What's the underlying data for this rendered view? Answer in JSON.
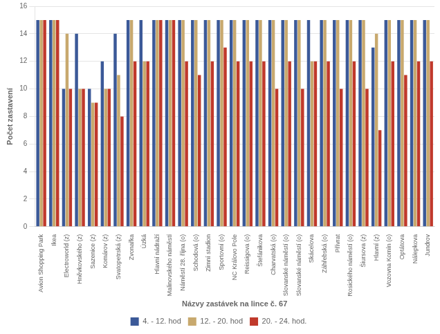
{
  "chart_data": {
    "type": "bar",
    "xlabel": "Názvy zastávek na lince č. 67",
    "ylabel": "Počet zastavení",
    "categories": [
      "Avion Shopping Park",
      "Ikea",
      "Electroworld (z)",
      "Hněvkovského (z)",
      "Sazenice (z)",
      "Komárov (z)",
      "Svatopetrská (z)",
      "Zvonařka",
      "Úzká",
      "Hlavní nádraží",
      "Malinovského náměstí",
      "Náměstí 28. října (o)",
      "Schodová (o)",
      "Zimní stadion",
      "Sportovní (o)",
      "NC Královo Pole",
      "Reissigova (o)",
      "Štefánikova",
      "Charvatská (o)",
      "Slovanské náměstí (o)",
      "Slovanské náměstí (o)",
      "Skácelova",
      "Záhřebská (o)",
      "Přívrat",
      "Rosického náměstí (o)",
      "Šiursova (z)",
      "Hlavní (z)",
      "Vozovna Komín (o)",
      "Optátova",
      "Nálepkova",
      "Jundrov"
    ],
    "series": [
      {
        "name": "4. - 12. hod",
        "color": "#3B5998",
        "values": [
          15,
          15,
          10,
          14,
          10,
          12,
          14,
          15,
          15,
          15,
          15,
          15,
          15,
          15,
          15,
          15,
          15,
          15,
          15,
          15,
          15,
          15,
          15,
          15,
          15,
          15,
          13,
          15,
          15,
          15,
          15
        ]
      },
      {
        "name": "12. - 20. hod",
        "color": "#C8A96E",
        "values": [
          15,
          15,
          14,
          10,
          9,
          10,
          11,
          15,
          12,
          15,
          15,
          15,
          15,
          15,
          15,
          15,
          15,
          15,
          15,
          15,
          15,
          12,
          15,
          15,
          15,
          15,
          14,
          15,
          15,
          15,
          15
        ]
      },
      {
        "name": "20. - 24. hod.",
        "color": "#C0392B",
        "values": [
          15,
          15,
          10,
          10,
          9,
          10,
          8,
          12,
          12,
          15,
          15,
          12,
          11,
          12,
          13,
          12,
          12,
          12,
          10,
          12,
          10,
          12,
          12,
          10,
          12,
          10,
          7,
          12,
          11,
          12,
          12
        ]
      }
    ],
    "ylim": [
      0,
      16
    ],
    "yticks": [
      0,
      2,
      4,
      6,
      8,
      10,
      12,
      14,
      16
    ],
    "grid": "y",
    "legend": "bottom"
  }
}
